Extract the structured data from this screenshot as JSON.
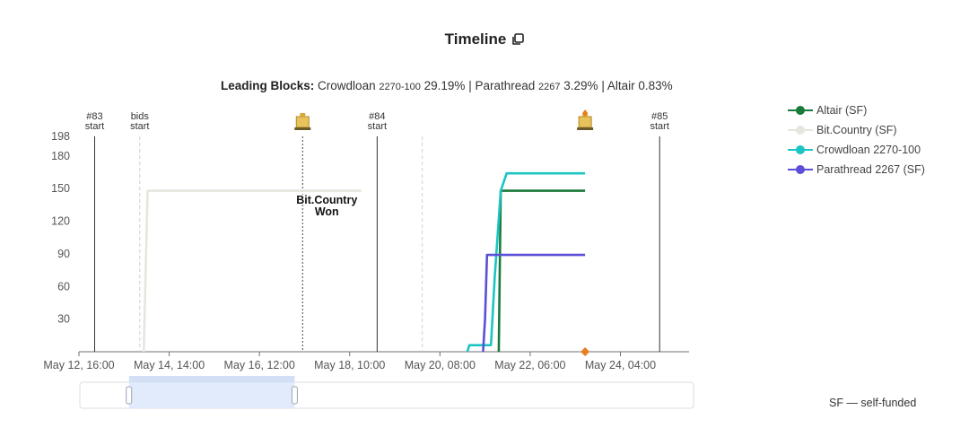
{
  "header": {
    "title": "Timeline",
    "copy_icon": "copy-icon"
  },
  "leading": {
    "label": "Leading Blocks:",
    "crowdloan_name": "Crowdloan",
    "crowdloan_id": "2270-100",
    "crowdloan_pct": "29.19%",
    "sep1": "|",
    "parathread_name": "Parathread",
    "parathread_id": "2267",
    "parathread_pct": "3.29%",
    "sep2": "|",
    "altair_text": "Altair 0.83%"
  },
  "footnote": "SF — self-funded",
  "chart_data": {
    "type": "line",
    "x_axis": {
      "type": "time",
      "tick_labels": [
        "May 12, 16:00",
        "May 14, 14:00",
        "May 16, 12:00",
        "May 18, 10:00",
        "May 20, 08:00",
        "May 22, 06:00",
        "May 24, 04:00"
      ],
      "range_start": "May 12, 16:00",
      "range_end": "May 25, 15:00"
    },
    "y_axis": {
      "tick_labels": [
        "30",
        "60",
        "90",
        "120",
        "150",
        "180",
        "198"
      ],
      "ylim": [
        0,
        198
      ]
    },
    "grid": false,
    "legend_position": "right",
    "markers": [
      {
        "id": "m83",
        "line1": "#83",
        "line2": "start",
        "x": "May 13, 00:00",
        "style": "solid"
      },
      {
        "id": "mbids",
        "line1": "bids",
        "line2": "start",
        "x": "May 13, 23:00",
        "style": "dashed"
      },
      {
        "id": "m84",
        "line1": "#84",
        "line2": "start",
        "x": "May 19, 00:00",
        "style": "solid"
      },
      {
        "id": "mdash2",
        "line1": "",
        "line2": "",
        "x": "May 19, 23:00",
        "style": "dashed"
      },
      {
        "id": "m85",
        "line1": "#85",
        "line2": "start",
        "x": "May 25, 00:00",
        "style": "solid"
      }
    ],
    "events": [
      {
        "id": "won",
        "x": "May 17, 10:00",
        "icon": "auction-icon",
        "label_line1": "Bit.Country",
        "label_line2": "Won"
      },
      {
        "id": "end2",
        "x": "May 23, 10:00",
        "icon": "auction-icon"
      }
    ],
    "series": [
      {
        "name": "Altair (SF)",
        "color": "#1a7a3c",
        "points": [
          [
            "May 21, 14:00",
            0
          ],
          [
            "May 21, 15:00",
            148
          ],
          [
            "May 23, 10:00",
            148
          ]
        ]
      },
      {
        "name": "Bit.Country (SF)",
        "color": "#e6e6de",
        "points": [
          [
            "May 14, 01:00",
            0
          ],
          [
            "May 14, 03:00",
            148
          ],
          [
            "May 18, 16:00",
            148
          ]
        ]
      },
      {
        "name": "Crowdloan 2270-100",
        "color": "#1cc4c4",
        "points": [
          [
            "May 20, 22:00",
            0
          ],
          [
            "May 20, 23:00",
            6
          ],
          [
            "May 21, 10:00",
            6
          ],
          [
            "May 21, 12:00",
            70
          ],
          [
            "May 21, 15:00",
            148
          ],
          [
            "May 21, 18:00",
            164
          ],
          [
            "May 23, 10:00",
            164
          ]
        ]
      },
      {
        "name": "Parathread 2267 (SF)",
        "color": "#5a4fd6",
        "points": [
          [
            "May 21, 06:00",
            0
          ],
          [
            "May 21, 07:00",
            30
          ],
          [
            "May 21, 08:00",
            89
          ],
          [
            "May 23, 10:00",
            89
          ]
        ]
      }
    ],
    "zoom_window": {
      "start_fraction": 0.08,
      "end_fraction": 0.35
    },
    "end_marker": {
      "x": "May 23, 10:00",
      "color": "#e87e1e"
    }
  }
}
